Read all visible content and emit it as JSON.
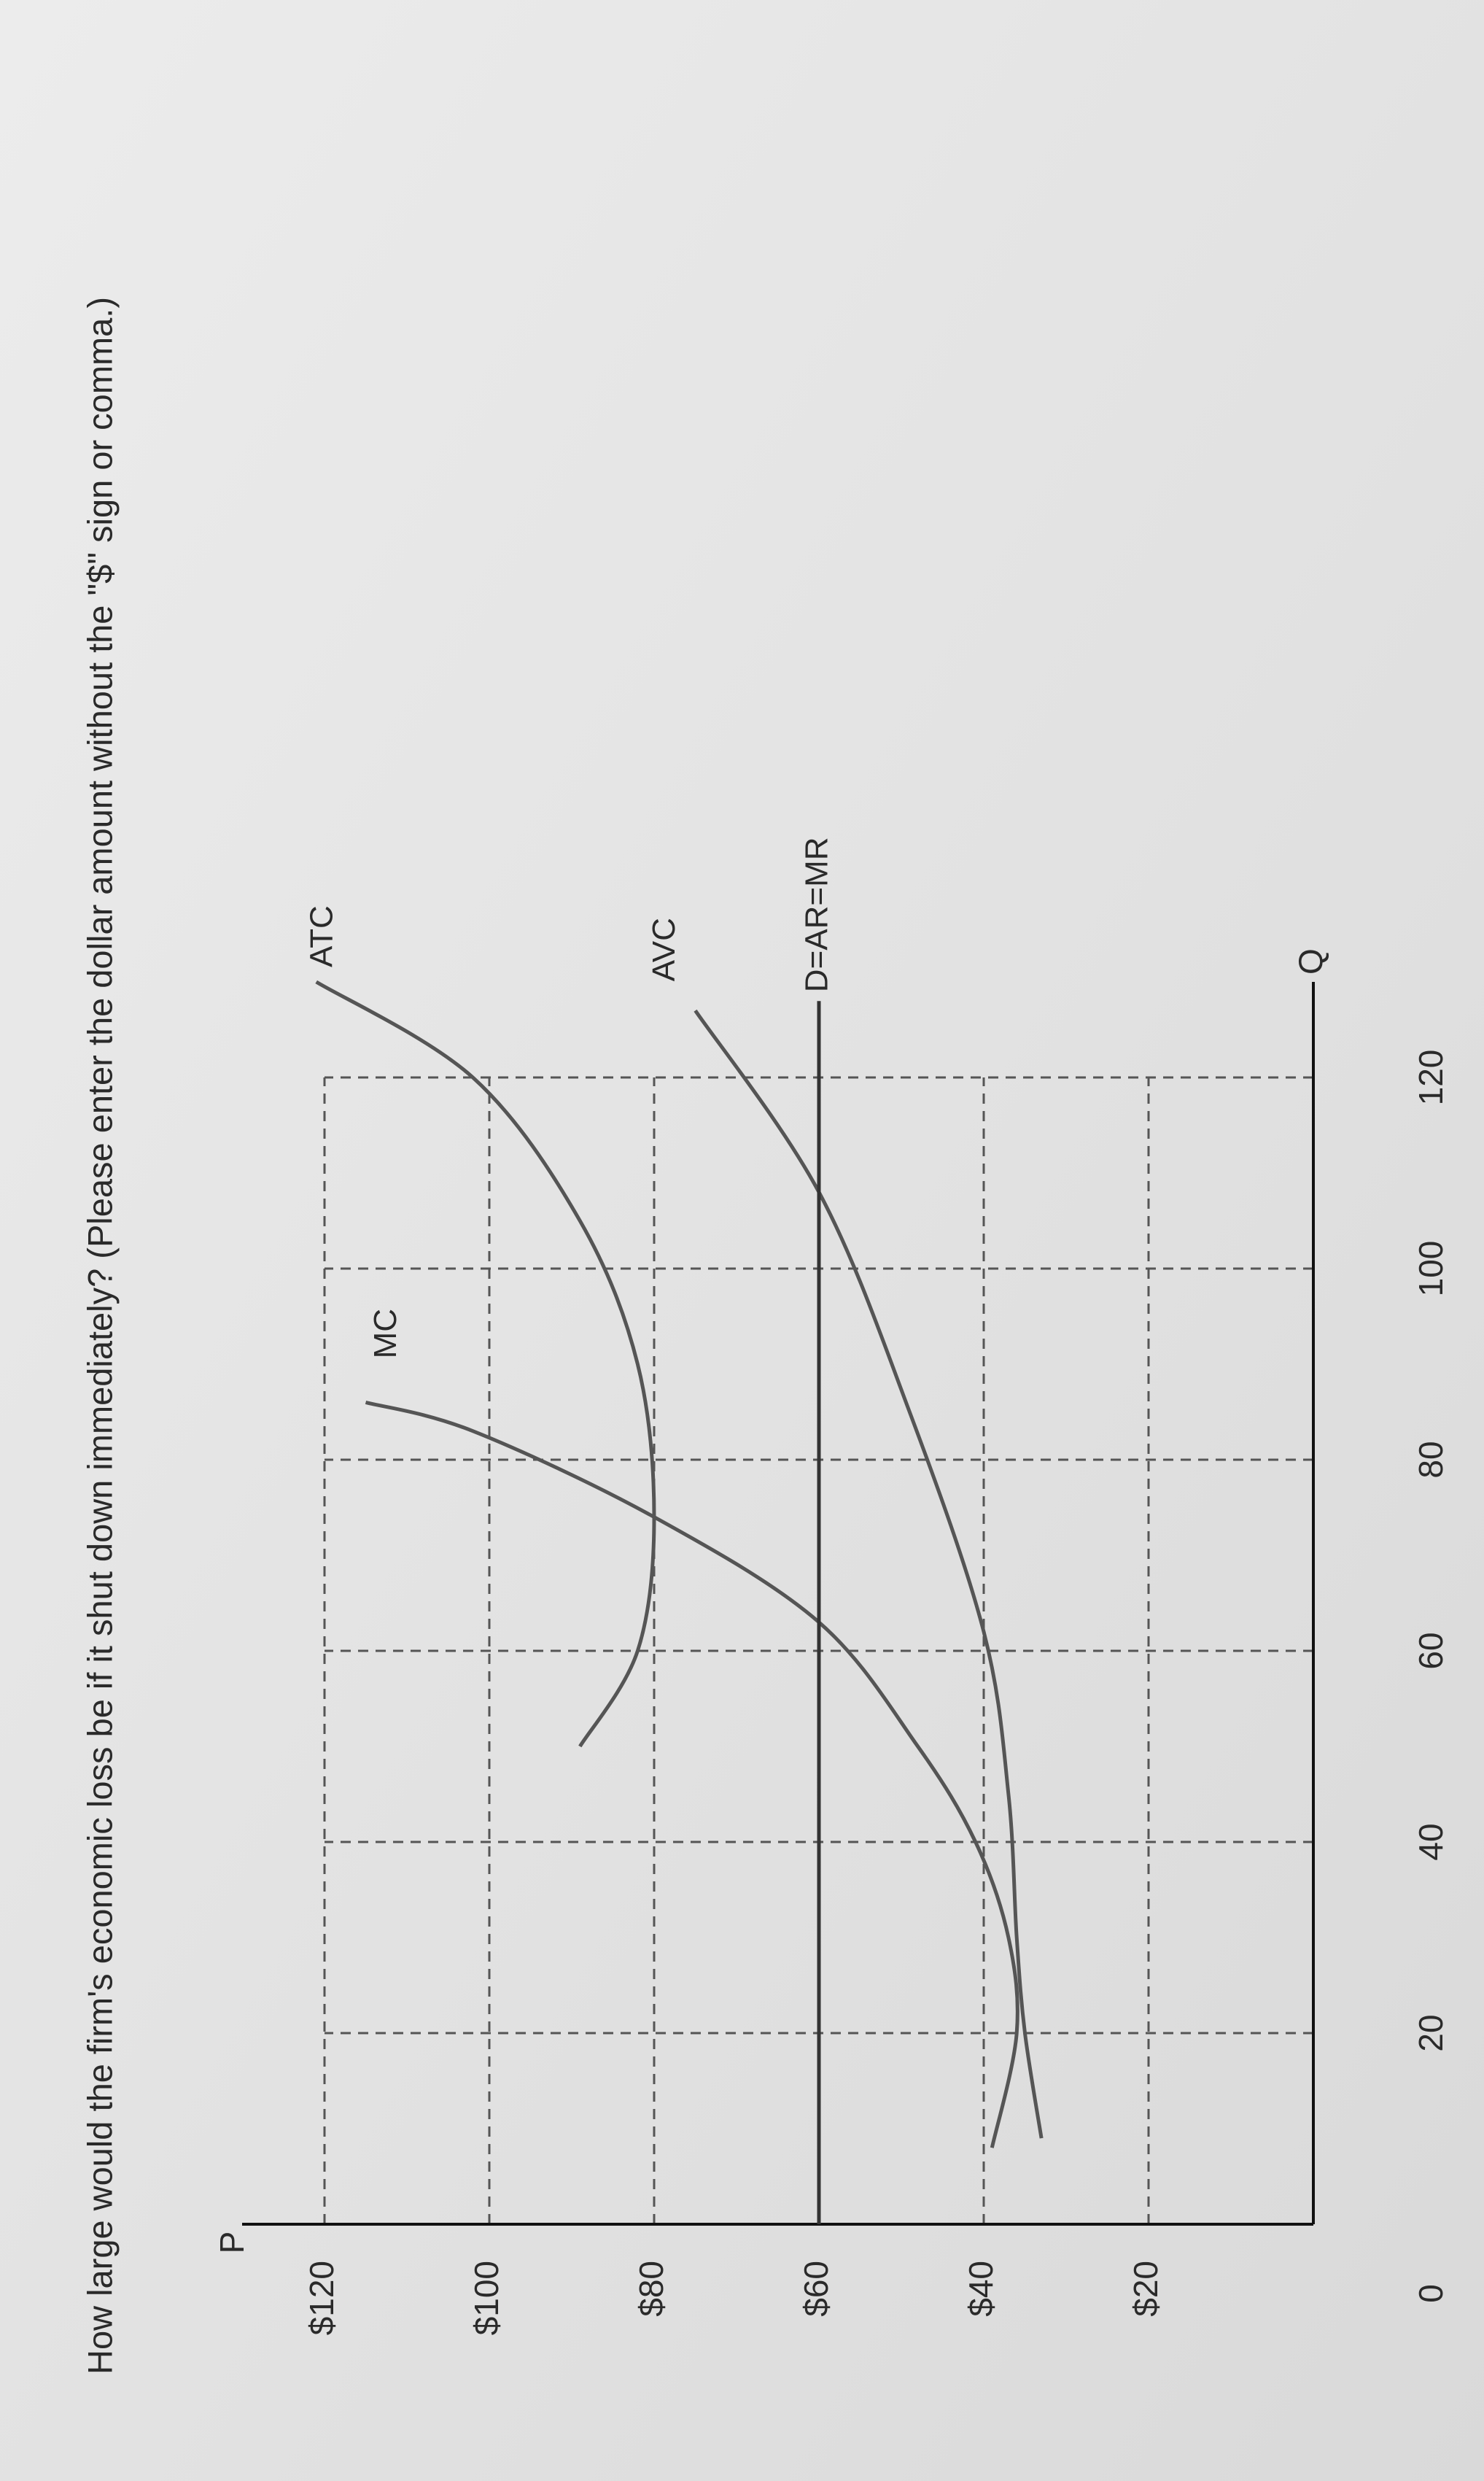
{
  "question": "How large would the firm's economic loss be if it shut down immediately? (Please enter the dollar amount without the \"$\" sign or comma.)",
  "chart_data": {
    "type": "line",
    "ylabel": "P",
    "xlabel": "Q",
    "xlim": [
      0,
      130
    ],
    "ylim": [
      0,
      130
    ],
    "xticks": [
      0,
      20,
      40,
      60,
      80,
      100,
      120
    ],
    "yticks": [
      {
        "value": 20,
        "label": "$20"
      },
      {
        "value": 40,
        "label": "$40"
      },
      {
        "value": 60,
        "label": "$60"
      },
      {
        "value": 80,
        "label": "$80"
      },
      {
        "value": 100,
        "label": "$100"
      },
      {
        "value": 120,
        "label": "$120"
      }
    ],
    "grid": true,
    "series": [
      {
        "name": "MC",
        "color": "#555555",
        "x": [
          8,
          20,
          30,
          40,
          50,
          63,
          74,
          83,
          86
        ],
        "values": [
          39,
          36,
          37,
          41,
          48,
          60,
          80,
          102,
          115
        ]
      },
      {
        "name": "ATC",
        "color": "#555555",
        "x": [
          50,
          60,
          74,
          90,
          105,
          120,
          130
        ],
        "values": [
          89,
          82,
          80,
          82,
          89,
          102,
          121
        ]
      },
      {
        "name": "AVC",
        "color": "#555555",
        "x": [
          9,
          20,
          30,
          45,
          62,
          85,
          108,
          127
        ],
        "values": [
          33,
          35,
          36,
          37,
          40,
          49,
          60,
          75
        ]
      },
      {
        "name": "D=AR=MR",
        "color": "#333333",
        "x": [
          0,
          128
        ],
        "values": [
          60,
          60
        ]
      }
    ]
  }
}
